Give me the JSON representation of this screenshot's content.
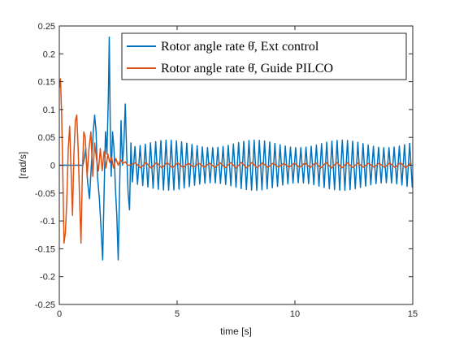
{
  "chart_data": {
    "type": "line",
    "xlabel": "time [s]",
    "ylabel": "[rad/s]",
    "xlim": [
      0,
      15
    ],
    "ylim": [
      -0.25,
      0.25
    ],
    "xticks": [
      "0",
      "5",
      "10",
      "15"
    ],
    "yticks": [
      "-0.25",
      "-0.2",
      "-0.15",
      "-0.1",
      "-0.05",
      "0",
      "0.05",
      "0.1",
      "0.15",
      "0.2",
      "0.25"
    ],
    "grid": false,
    "legend_position": "top-right",
    "series": [
      {
        "name": "Rotor angle rate θ̇, Ext control",
        "color": "#0072BD",
        "x": [
          0,
          1.0,
          1.05,
          1.12,
          1.2,
          1.28,
          1.36,
          1.44,
          1.5,
          1.56,
          1.62,
          1.7,
          1.78,
          1.84,
          1.9,
          1.96,
          2.02,
          2.08,
          2.12,
          2.16,
          2.2,
          2.26,
          2.32,
          2.38,
          2.44,
          2.5,
          2.56,
          2.62,
          2.68,
          2.74,
          2.8,
          2.86,
          2.92,
          2.98,
          3.04,
          3.1
        ],
        "y": [
          0,
          0,
          0.01,
          0.03,
          -0.03,
          -0.06,
          0.0,
          0.06,
          0.09,
          0.06,
          -0.02,
          -0.06,
          -0.12,
          -0.17,
          -0.05,
          0.06,
          0.02,
          0.12,
          0.23,
          0.08,
          -0.02,
          0.06,
          0.03,
          -0.04,
          -0.09,
          -0.17,
          -0.04,
          0.08,
          0.0,
          0.04,
          0.11,
          0.02,
          -0.05,
          -0.08,
          0.04,
          -0.03
        ],
        "steady": {
          "t_start": 3.1,
          "t_end": 15,
          "amplitude": 0.045,
          "period": 0.22
        }
      },
      {
        "name": "Rotor angle rate θ̇, Guide PILCO",
        "color": "#D95319",
        "x": [
          0,
          0.05,
          0.1,
          0.15,
          0.2,
          0.26,
          0.32,
          0.38,
          0.44,
          0.5,
          0.56,
          0.62,
          0.68,
          0.74,
          0.8,
          0.86,
          0.92,
          0.98,
          1.04,
          1.1,
          1.18,
          1.26,
          1.34,
          1.42,
          1.5,
          1.58,
          1.66,
          1.74,
          1.82,
          1.9,
          1.98,
          2.06,
          2.14,
          2.22,
          2.3,
          2.4,
          2.5,
          2.6,
          2.7,
          2.8,
          2.9,
          3.0
        ],
        "y": [
          0.14,
          0.155,
          0.09,
          -0.02,
          -0.14,
          -0.12,
          -0.06,
          0.03,
          0.07,
          -0.01,
          -0.09,
          0.02,
          0.08,
          0.09,
          0.03,
          -0.06,
          -0.14,
          -0.01,
          0.06,
          0.05,
          -0.02,
          0.03,
          0.06,
          -0.02,
          0.04,
          0.01,
          -0.01,
          0.03,
          -0.01,
          0.025,
          -0.005,
          0.02,
          0.005,
          0.015,
          -0.005,
          0.012,
          0.0,
          0.01,
          0.003,
          0.006,
          0.0,
          0.0
        ],
        "steady": {
          "t_start": 3.0,
          "t_end": 15,
          "amplitude": 0.005,
          "period": 0.45
        }
      }
    ]
  }
}
